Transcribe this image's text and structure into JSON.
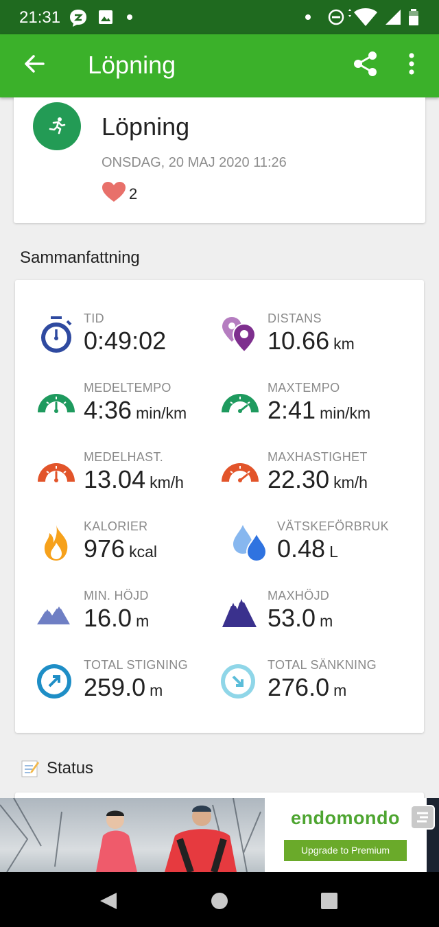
{
  "status_bar": {
    "time": "21:31",
    "icons": [
      "chat-bubble-icon",
      "image-icon",
      "dot-icon",
      "dot-icon",
      "do-not-disturb-icon",
      "wifi-icon",
      "signal-icon",
      "battery-icon"
    ]
  },
  "app_bar": {
    "title": "Löpning",
    "back_icon": "arrow-left-icon",
    "share_icon": "share-icon",
    "menu_icon": "more-vert-icon",
    "color": "#3bb12a"
  },
  "activity": {
    "title": "Löpning",
    "date": "ONSDAG, 20 MAJ 2020 11:26",
    "likes": "2",
    "badge_color": "#239b55"
  },
  "summary": {
    "heading": "Sammanfattning",
    "metrics": [
      {
        "label": "TID",
        "value": "0:49:02",
        "unit": "",
        "icon": "stopwatch-icon"
      },
      {
        "label": "DISTANS",
        "value": "10.66",
        "unit": "km",
        "icon": "map-pins-icon"
      },
      {
        "label": "MEDELTEMPO",
        "value": "4:36",
        "unit": "min/km",
        "icon": "pace-gauge-icon"
      },
      {
        "label": "MAXTEMPO",
        "value": "2:41",
        "unit": "min/km",
        "icon": "max-pace-gauge-icon"
      },
      {
        "label": "MEDELHAST.",
        "value": "13.04",
        "unit": "km/h",
        "icon": "speed-gauge-icon"
      },
      {
        "label": "MAXHASTIGHET",
        "value": "22.30",
        "unit": "km/h",
        "icon": "max-speed-gauge-icon"
      },
      {
        "label": "KALORIER",
        "value": "976",
        "unit": "kcal",
        "icon": "flame-icon"
      },
      {
        "label": "VÄTSKEFÖRBRUK",
        "value": "0.48",
        "unit": "L",
        "icon": "water-drops-icon"
      },
      {
        "label": "MIN. HÖJD",
        "value": "16.0",
        "unit": "m",
        "icon": "low-mountain-icon"
      },
      {
        "label": "MAXHÖJD",
        "value": "53.0",
        "unit": "m",
        "icon": "high-mountain-icon"
      },
      {
        "label": "TOTAL STIGNING",
        "value": "259.0",
        "unit": "m",
        "icon": "ascent-icon"
      },
      {
        "label": "TOTAL SÄNKNING",
        "value": "276.0",
        "unit": "m",
        "icon": "descent-icon"
      }
    ]
  },
  "status_section": {
    "heading": "Status",
    "icon": "note-icon"
  },
  "ad": {
    "brand": "endomondo",
    "cta": "Upgrade to Premium"
  },
  "nav_bar": {
    "icons": [
      "back-triangle-icon",
      "home-circle-icon",
      "recents-square-icon"
    ]
  }
}
